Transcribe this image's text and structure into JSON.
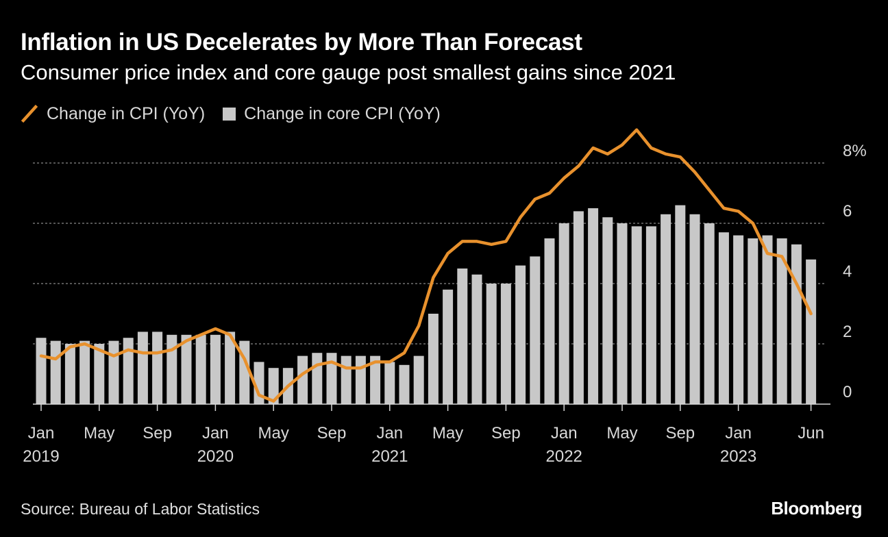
{
  "chart_data": {
    "type": "bar+line",
    "title": "Inflation in US Decelerates by More Than Forecast",
    "subtitle": "Consumer price index and core gauge post smallest gains since 2021",
    "ylim": [
      0,
      9
    ],
    "y_ticks": [
      {
        "value": 0,
        "label": "0"
      },
      {
        "value": 2,
        "label": "2"
      },
      {
        "value": 4,
        "label": "4"
      },
      {
        "value": 6,
        "label": "6"
      },
      {
        "value": 8,
        "label": "8%"
      }
    ],
    "grid": true,
    "legend_position": "top-left",
    "x": [
      "2019-01",
      "2019-02",
      "2019-03",
      "2019-04",
      "2019-05",
      "2019-06",
      "2019-07",
      "2019-08",
      "2019-09",
      "2019-10",
      "2019-11",
      "2019-12",
      "2020-01",
      "2020-02",
      "2020-03",
      "2020-04",
      "2020-05",
      "2020-06",
      "2020-07",
      "2020-08",
      "2020-09",
      "2020-10",
      "2020-11",
      "2020-12",
      "2021-01",
      "2021-02",
      "2021-03",
      "2021-04",
      "2021-05",
      "2021-06",
      "2021-07",
      "2021-08",
      "2021-09",
      "2021-10",
      "2021-11",
      "2021-12",
      "2022-01",
      "2022-02",
      "2022-03",
      "2022-04",
      "2022-05",
      "2022-06",
      "2022-07",
      "2022-08",
      "2022-09",
      "2022-10",
      "2022-11",
      "2022-12",
      "2023-01",
      "2023-02",
      "2023-03",
      "2023-04",
      "2023-05",
      "2023-06"
    ],
    "x_tick_labels": [
      {
        "index": 0,
        "lines": [
          "Jan",
          "2019"
        ]
      },
      {
        "index": 4,
        "lines": [
          "May",
          ""
        ]
      },
      {
        "index": 8,
        "lines": [
          "Sep",
          ""
        ]
      },
      {
        "index": 12,
        "lines": [
          "Jan",
          "2020"
        ]
      },
      {
        "index": 16,
        "lines": [
          "May",
          ""
        ]
      },
      {
        "index": 20,
        "lines": [
          "Sep",
          ""
        ]
      },
      {
        "index": 24,
        "lines": [
          "Jan",
          "2021"
        ]
      },
      {
        "index": 28,
        "lines": [
          "May",
          ""
        ]
      },
      {
        "index": 32,
        "lines": [
          "Sep",
          ""
        ]
      },
      {
        "index": 36,
        "lines": [
          "Jan",
          "2022"
        ]
      },
      {
        "index": 40,
        "lines": [
          "May",
          ""
        ]
      },
      {
        "index": 44,
        "lines": [
          "Sep",
          ""
        ]
      },
      {
        "index": 48,
        "lines": [
          "Jan",
          "2023"
        ]
      },
      {
        "index": 53,
        "lines": [
          "Jun",
          ""
        ]
      }
    ],
    "series": [
      {
        "name": "Change in core CPI (YoY)",
        "type": "bar",
        "color": "#c8c8c8",
        "values": [
          2.2,
          2.1,
          2.0,
          2.1,
          2.0,
          2.1,
          2.2,
          2.4,
          2.4,
          2.3,
          2.3,
          2.3,
          2.3,
          2.4,
          2.1,
          1.4,
          1.2,
          1.2,
          1.6,
          1.7,
          1.7,
          1.6,
          1.6,
          1.6,
          1.4,
          1.3,
          1.6,
          3.0,
          3.8,
          4.5,
          4.3,
          4.0,
          4.0,
          4.6,
          4.9,
          5.5,
          6.0,
          6.4,
          6.5,
          6.2,
          6.0,
          5.9,
          5.9,
          6.3,
          6.6,
          6.3,
          6.0,
          5.7,
          5.6,
          5.5,
          5.6,
          5.5,
          5.3,
          4.8
        ]
      },
      {
        "name": "Change in CPI (YoY)",
        "type": "line",
        "color": "#e8912d",
        "values": [
          1.6,
          1.5,
          1.9,
          2.0,
          1.8,
          1.6,
          1.8,
          1.7,
          1.7,
          1.8,
          2.1,
          2.3,
          2.5,
          2.3,
          1.5,
          0.3,
          0.1,
          0.6,
          1.0,
          1.3,
          1.4,
          1.2,
          1.2,
          1.4,
          1.4,
          1.7,
          2.6,
          4.2,
          5.0,
          5.4,
          5.4,
          5.3,
          5.4,
          6.2,
          6.8,
          7.0,
          7.5,
          7.9,
          8.5,
          8.3,
          8.6,
          9.1,
          8.5,
          8.3,
          8.2,
          7.7,
          7.1,
          6.5,
          6.4,
          6.0,
          5.0,
          4.9,
          4.0,
          3.0
        ]
      }
    ]
  },
  "legend": {
    "line_label": "Change in CPI (YoY)",
    "bar_label": "Change in core CPI (YoY)",
    "line_color": "#e8912d",
    "bar_color": "#c8c8c8"
  },
  "footer": {
    "source": "Source: Bureau of Labor Statistics",
    "brand": "Bloomberg"
  }
}
